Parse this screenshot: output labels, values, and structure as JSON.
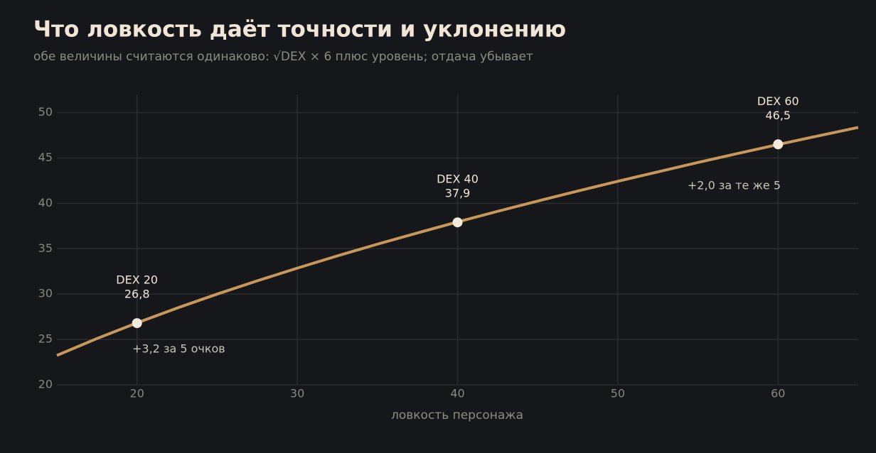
{
  "chart_data": {
    "type": "line",
    "title": "Что ловкость даёт точности и уклонению",
    "subtitle": "обе величины считаются одинаково: √DEX × 6 плюс уровень; отдача убывает",
    "x_label": "ловкость персонажа",
    "x": [
      15,
      17.5,
      20,
      22.5,
      25,
      27.5,
      30,
      32.5,
      35,
      37.5,
      40,
      42.5,
      45,
      47.5,
      50,
      52.5,
      55,
      57.5,
      60,
      62.5,
      65
    ],
    "series": [
      {
        "color": "#c8975a",
        "values": [
          23.24,
          25.1,
          26.83,
          28.46,
          30.0,
          31.46,
          32.86,
          34.21,
          35.5,
          36.74,
          37.95,
          39.12,
          40.25,
          41.35,
          42.43,
          43.47,
          44.5,
          45.5,
          46.48,
          47.43,
          48.37
        ]
      }
    ],
    "points": {
      "color": "#f3e9dc",
      "x": [
        20,
        40,
        60
      ],
      "labels": [
        "DEX 20",
        "DEX 40",
        "DEX 60"
      ],
      "values": [
        26.8,
        37.9,
        46.5
      ],
      "value_labels": [
        "26,8",
        "37,9",
        "46,5"
      ]
    },
    "annotations": [
      "+3,2 за 5 очков",
      "+2,0 за те же 5"
    ],
    "xlim": [
      15,
      65
    ],
    "xticks": [
      20,
      30,
      40,
      50,
      60
    ],
    "ylim": [
      20,
      52
    ],
    "yticks": [
      20,
      25,
      30,
      35,
      40,
      45,
      50
    ],
    "grid": true
  }
}
